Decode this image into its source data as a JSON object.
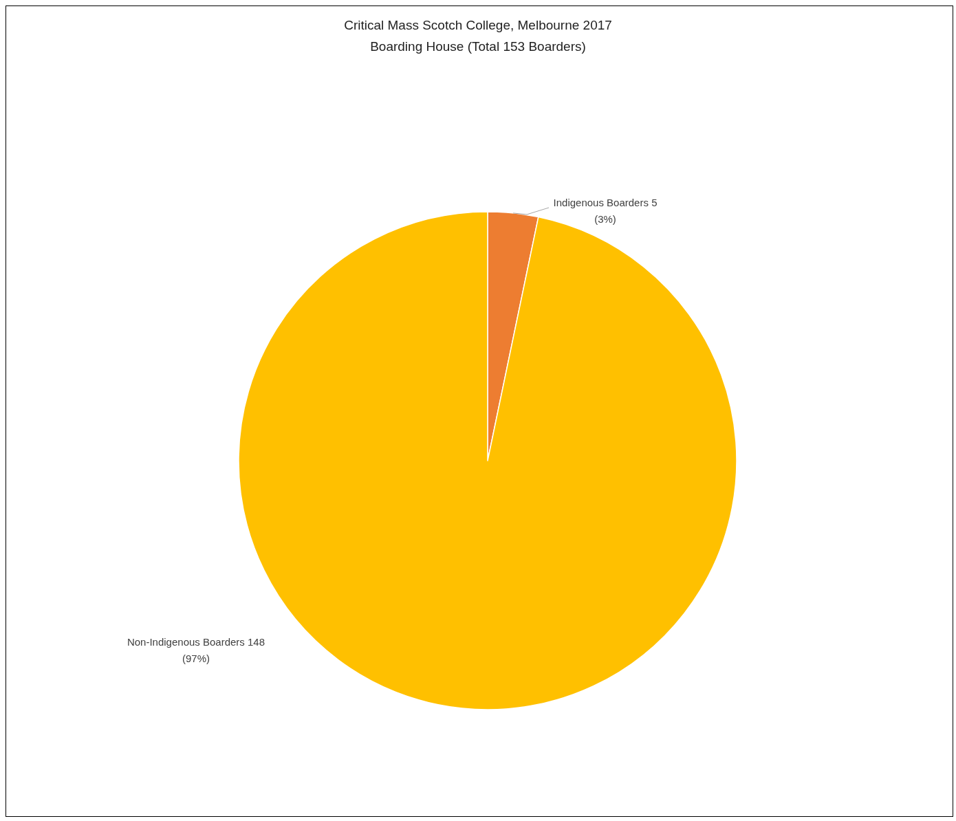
{
  "chart_data": {
    "type": "pie",
    "title": "Critical Mass Scotch College, Melbourne 2017",
    "subtitle": "Boarding House (Total 153 Boarders)",
    "categories": [
      "Indigenous Boarders",
      "Non-Indigenous Boarders"
    ],
    "values": [
      5,
      148
    ],
    "colors": [
      "#ed7d31",
      "#ffc000"
    ],
    "value_labels": [
      "5 (3%)",
      "148 (97%)"
    ]
  }
}
